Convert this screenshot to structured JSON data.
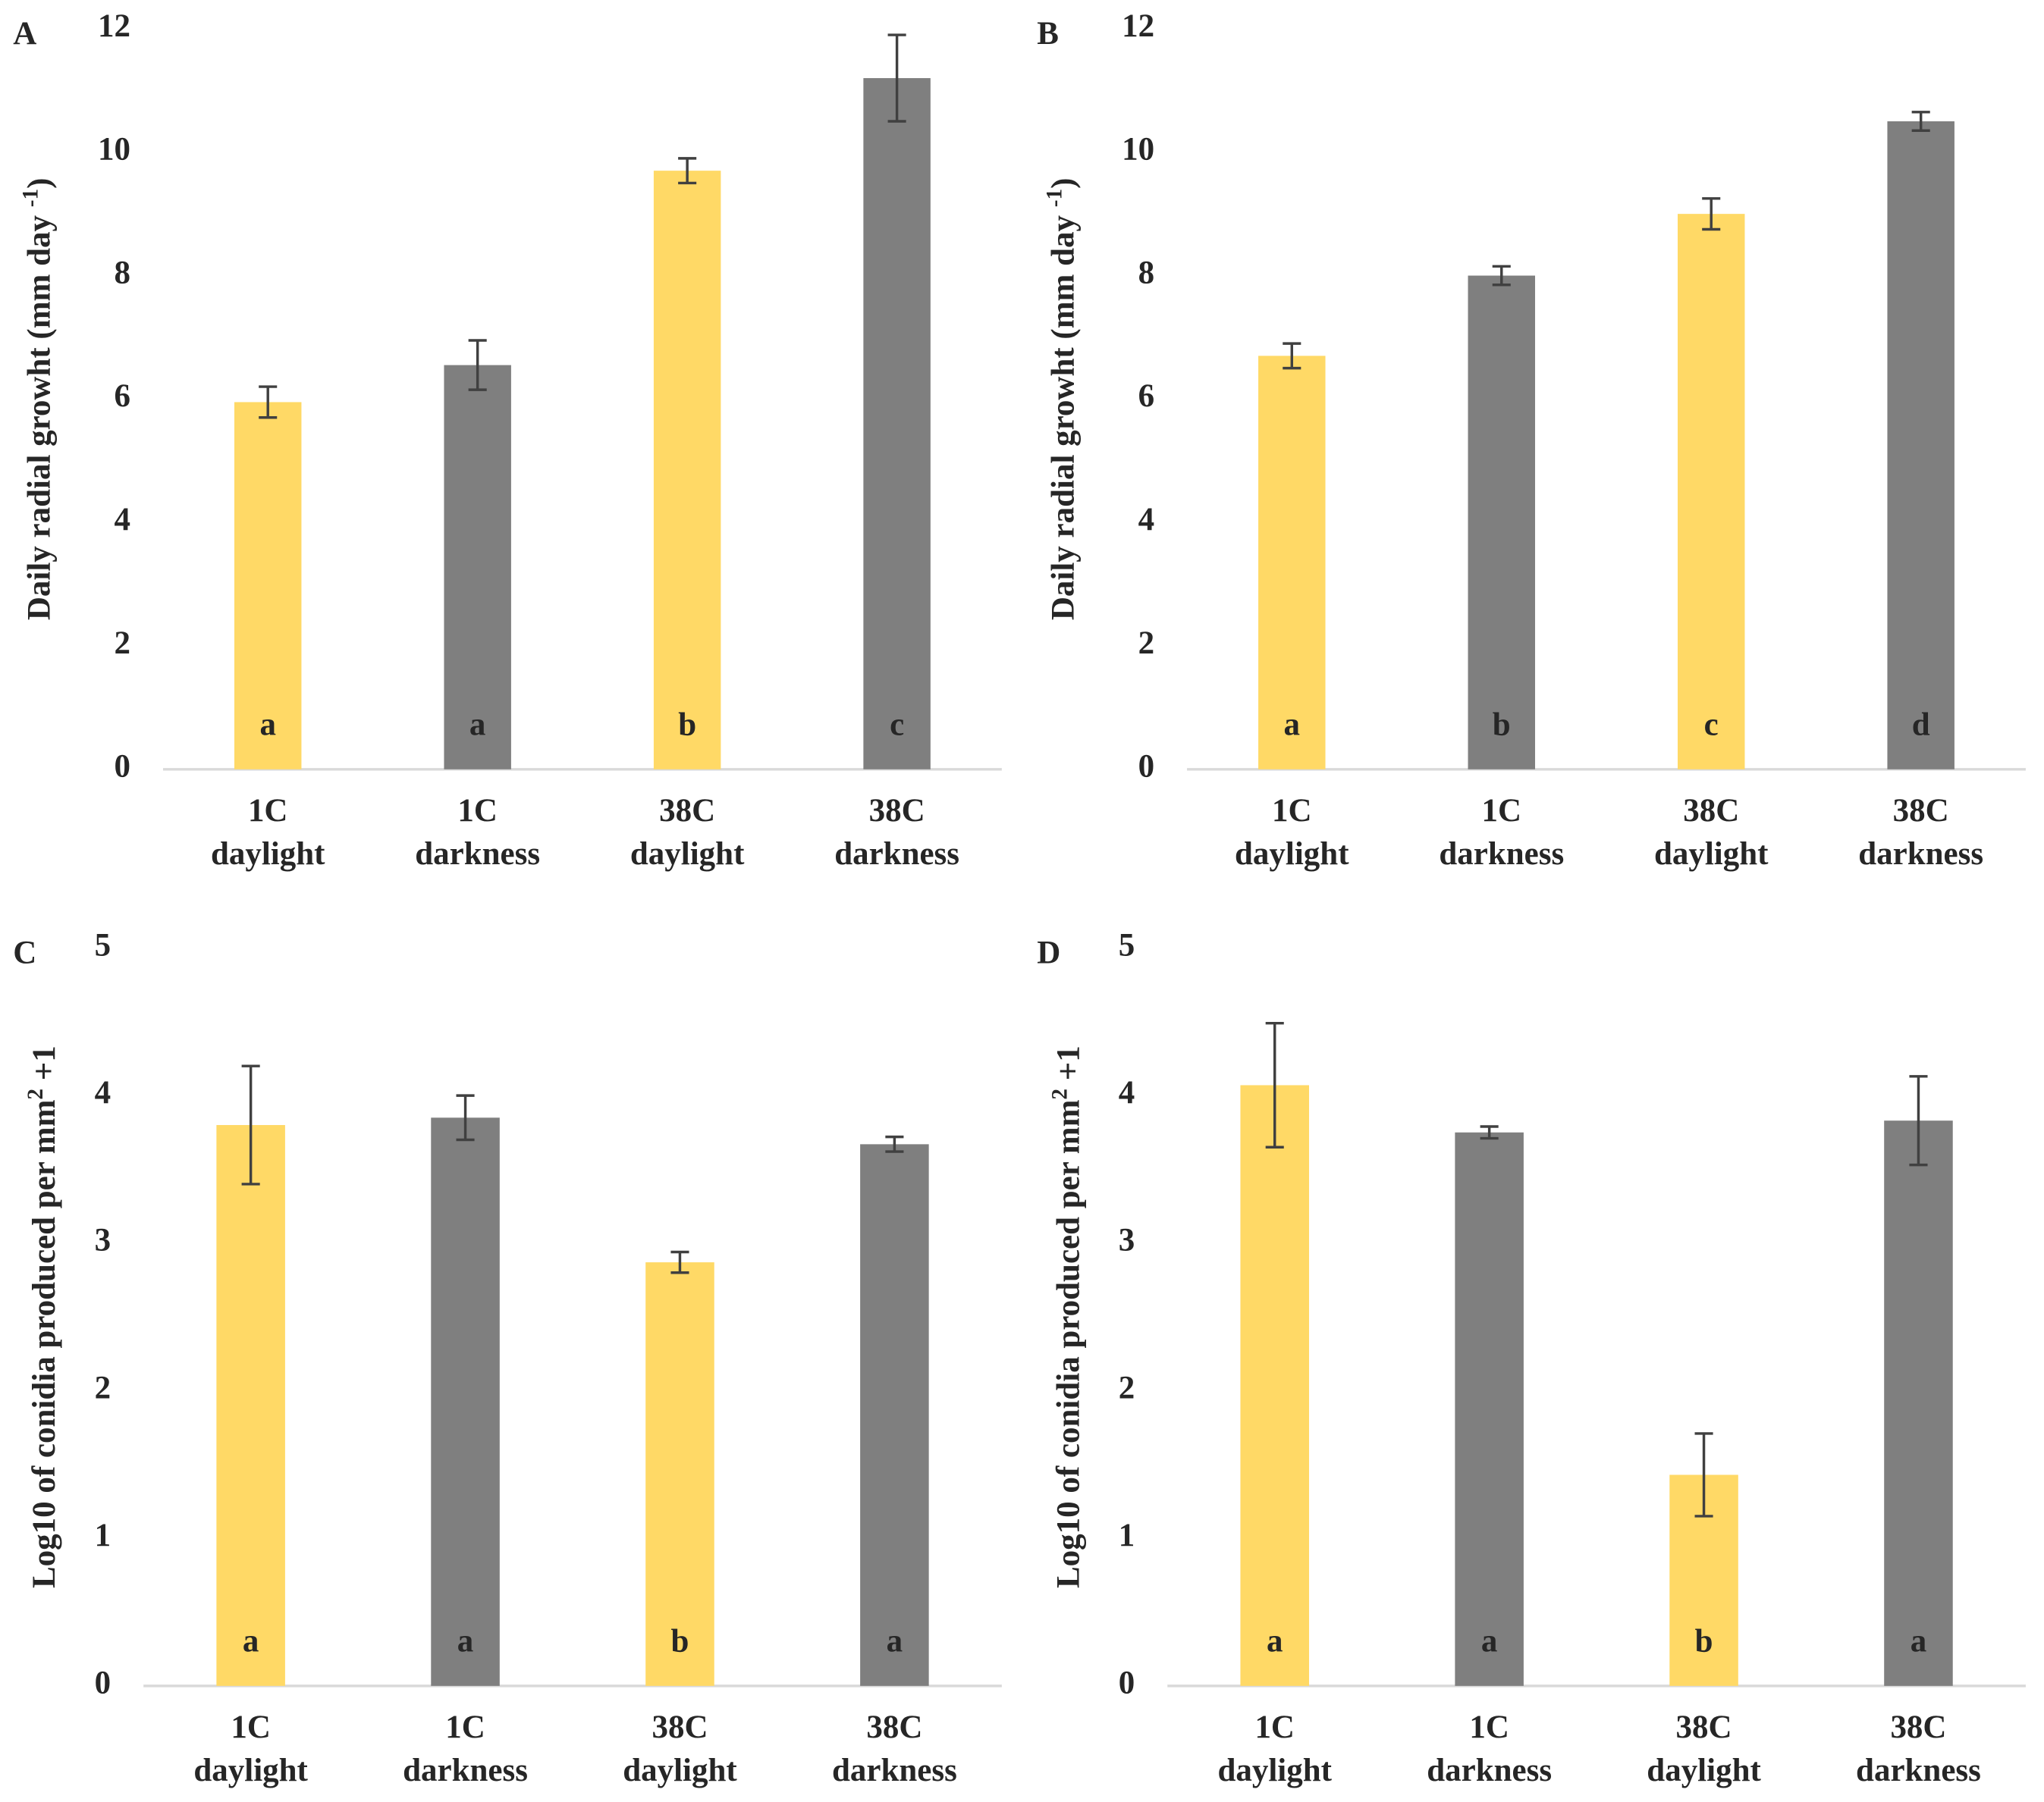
{
  "chart_data": [
    {
      "type": "bar",
      "panel": "A",
      "ylabel": [
        "Daily radial growht (mm day ",
        "-1",
        ")"
      ],
      "categories": [
        [
          "1C",
          "daylight"
        ],
        [
          "1C",
          "darkness"
        ],
        [
          "38C",
          "daylight"
        ],
        [
          "38C",
          "darkness"
        ]
      ],
      "values": [
        5.95,
        6.55,
        9.7,
        11.2
      ],
      "errors": [
        0.25,
        0.4,
        0.2,
        0.7
      ],
      "letters": [
        "a",
        "a",
        "b",
        "c"
      ],
      "colors": [
        "#FFD966",
        "#7F7F7F",
        "#FFD966",
        "#7F7F7F"
      ],
      "ylim": [
        0,
        12
      ],
      "yticks": [
        0,
        2,
        4,
        6,
        8,
        10,
        12
      ]
    },
    {
      "type": "bar",
      "panel": "B",
      "ylabel": [
        "Daily radial growht (mm day ",
        "-1",
        ")"
      ],
      "categories": [
        [
          "1C",
          "daylight"
        ],
        [
          "1C",
          "darkness"
        ],
        [
          "38C",
          "daylight"
        ],
        [
          "38C",
          "darkness"
        ]
      ],
      "values": [
        6.7,
        8.0,
        9.0,
        10.5
      ],
      "errors": [
        0.2,
        0.15,
        0.25,
        0.15
      ],
      "letters": [
        "a",
        "b",
        "c",
        "d"
      ],
      "colors": [
        "#FFD966",
        "#7F7F7F",
        "#FFD966",
        "#7F7F7F"
      ],
      "ylim": [
        0,
        12
      ],
      "yticks": [
        0,
        2,
        4,
        6,
        8,
        10,
        12
      ]
    },
    {
      "type": "bar",
      "panel": "C",
      "ylabel": [
        "Log10 of conidia produced per mm",
        "2",
        " +1"
      ],
      "categories": [
        [
          "1C",
          "daylight"
        ],
        [
          "1C",
          "darkness"
        ],
        [
          "38C",
          "daylight"
        ],
        [
          "38C",
          "darkness"
        ]
      ],
      "values": [
        3.8,
        3.85,
        2.87,
        3.67
      ],
      "errors": [
        0.4,
        0.15,
        0.07,
        0.05
      ],
      "letters": [
        "a",
        "a",
        "b",
        "a"
      ],
      "colors": [
        "#FFD966",
        "#7F7F7F",
        "#FFD966",
        "#7F7F7F"
      ],
      "ylim": [
        0,
        5
      ],
      "yticks": [
        0,
        1,
        2,
        3,
        4,
        5
      ]
    },
    {
      "type": "bar",
      "panel": "D",
      "ylabel": [
        "Log10 of conidia produced per mm",
        "2",
        " +1"
      ],
      "categories": [
        [
          "1C",
          "daylight"
        ],
        [
          "1C",
          "darkness"
        ],
        [
          "38C",
          "daylight"
        ],
        [
          "38C",
          "darkness"
        ]
      ],
      "values": [
        4.07,
        3.75,
        1.43,
        3.83
      ],
      "errors": [
        0.42,
        0.04,
        0.28,
        0.3
      ],
      "letters": [
        "a",
        "a",
        "b",
        "a"
      ],
      "colors": [
        "#FFD966",
        "#7F7F7F",
        "#FFD966",
        "#7F7F7F"
      ],
      "ylim": [
        0,
        5
      ],
      "yticks": [
        0,
        1,
        2,
        3,
        4,
        5
      ]
    }
  ]
}
